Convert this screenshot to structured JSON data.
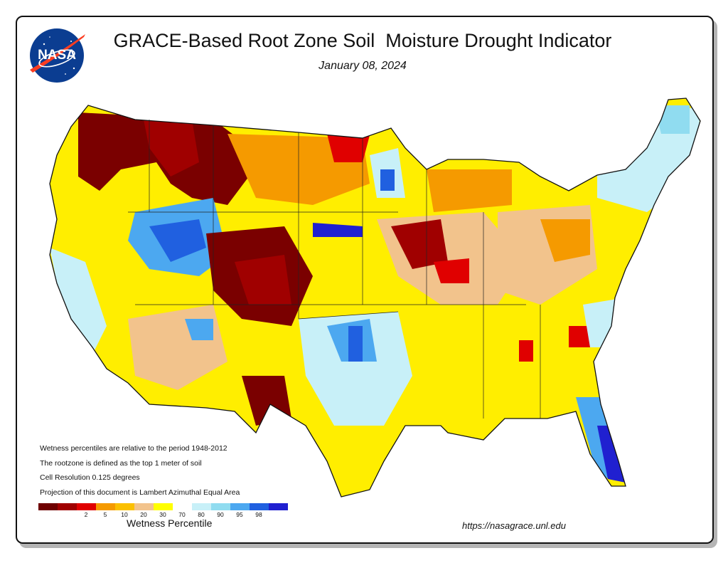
{
  "header": {
    "title": "GRACE-Based Root Zone Soil  Moisture Drought Indicator",
    "date": "January 08, 2024",
    "logo_text": "NASA"
  },
  "notes": [
    "Wetness percentiles are relative to the period 1948-2012",
    "The rootzone is defined as the top 1 meter of soil",
    "Cell Resolution 0.125 degrees",
    "Projection of this document is Lambert Azimuthal Equal Area"
  ],
  "legend": {
    "title": "Wetness Percentile",
    "colors": [
      "#6e0000",
      "#a00000",
      "#e00000",
      "#f59a00",
      "#fbc000",
      "#f2c38c",
      "#ffff00",
      "#ffffff",
      "#c8f0f8",
      "#90dcf0",
      "#4ca8f0",
      "#2060e0",
      "#2020d0"
    ],
    "tick_labels": [
      "2",
      "5",
      "10",
      "20",
      "30",
      "70",
      "80",
      "90",
      "95",
      "98"
    ]
  },
  "url": "https://nasagrace.unl.edu",
  "colors": {
    "drought_severe": "#7a0000",
    "drought_moderate": "#e00000",
    "dry_orange": "#f59a00",
    "dry_tan": "#f2c38c",
    "dry_yellow": "#ffee00",
    "wet_light": "#c8f0f8",
    "wet_mid": "#4ca8f0",
    "wet_deep": "#2020d0"
  }
}
